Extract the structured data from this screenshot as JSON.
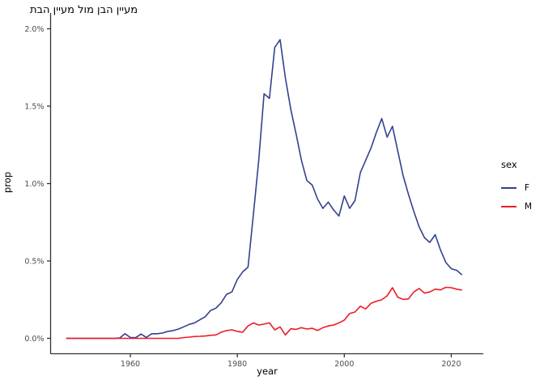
{
  "chart_data": {
    "type": "line",
    "title": "מעיין הבן מול מעיין הבת",
    "xlabel": "year",
    "ylabel": "prop",
    "background_color": "#ffffff",
    "axis_line_color": "#333333",
    "tick_label_color": "#4d4d4d",
    "grid": false,
    "x_ticks": {
      "values": [
        1960,
        1980,
        2000,
        2020
      ],
      "labels": [
        "1960",
        "1980",
        "2000",
        "2020"
      ]
    },
    "y_ticks": {
      "values": [
        0,
        0.5,
        1.0,
        1.5,
        2.0
      ],
      "labels": [
        "0.0%",
        "0.5%",
        "1.0%",
        "1.5%",
        "2.0%"
      ]
    },
    "xlim": [
      1944.3,
      2025.7
    ],
    "ylim": [
      -0.105,
      2.105
    ],
    "legend": {
      "title": "sex",
      "position": "right"
    },
    "x": [
      1948,
      1949,
      1950,
      1951,
      1952,
      1953,
      1954,
      1955,
      1956,
      1957,
      1958,
      1959,
      1960,
      1961,
      1962,
      1963,
      1964,
      1965,
      1966,
      1967,
      1968,
      1969,
      1970,
      1971,
      1972,
      1973,
      1974,
      1975,
      1976,
      1977,
      1978,
      1979,
      1980,
      1981,
      1982,
      1983,
      1984,
      1985,
      1986,
      1987,
      1988,
      1989,
      1990,
      1991,
      1992,
      1993,
      1994,
      1995,
      1996,
      1997,
      1998,
      1999,
      2000,
      2001,
      2002,
      2003,
      2004,
      2005,
      2006,
      2007,
      2008,
      2009,
      2010,
      2011,
      2012,
      2013,
      2014,
      2015,
      2016,
      2017,
      2018,
      2019,
      2020,
      2021,
      2022
    ],
    "series": [
      {
        "name": "F",
        "color": "#33408f",
        "values": [
          0,
          0,
          0,
          0,
          0,
          0,
          0,
          0,
          0,
          0,
          0.002,
          0.03,
          0.006,
          0.004,
          0.028,
          0.006,
          0.03,
          0.03,
          0.034,
          0.045,
          0.05,
          0.06,
          0.075,
          0.09,
          0.1,
          0.12,
          0.14,
          0.18,
          0.195,
          0.23,
          0.285,
          0.3,
          0.38,
          0.43,
          0.46,
          0.8,
          1.15,
          1.58,
          1.55,
          1.88,
          1.93,
          1.68,
          1.48,
          1.32,
          1.15,
          1.02,
          0.99,
          0.9,
          0.84,
          0.88,
          0.83,
          0.79,
          0.92,
          0.84,
          0.89,
          1.07,
          1.15,
          1.23,
          1.33,
          1.42,
          1.3,
          1.37,
          1.21,
          1.05,
          0.93,
          0.82,
          0.72,
          0.65,
          0.62,
          0.67,
          0.57,
          0.49,
          0.45,
          0.44,
          0.41
        ]
      },
      {
        "name": "M",
        "color": "#ed1c24",
        "values": [
          0,
          0,
          0,
          0,
          0,
          0,
          0,
          0,
          0,
          0,
          0,
          0,
          0,
          0,
          0,
          0,
          0,
          0,
          0,
          0,
          0,
          0,
          0.005,
          0.008,
          0.012,
          0.013,
          0.015,
          0.02,
          0.022,
          0.04,
          0.05,
          0.055,
          0.045,
          0.04,
          0.08,
          0.1,
          0.086,
          0.092,
          0.1,
          0.055,
          0.074,
          0.022,
          0.062,
          0.058,
          0.069,
          0.06,
          0.065,
          0.051,
          0.069,
          0.08,
          0.086,
          0.1,
          0.118,
          0.16,
          0.17,
          0.208,
          0.19,
          0.226,
          0.24,
          0.249,
          0.275,
          0.327,
          0.266,
          0.252,
          0.255,
          0.3,
          0.322,
          0.292,
          0.3,
          0.318,
          0.313,
          0.33,
          0.327,
          0.318,
          0.312
        ]
      }
    ]
  }
}
